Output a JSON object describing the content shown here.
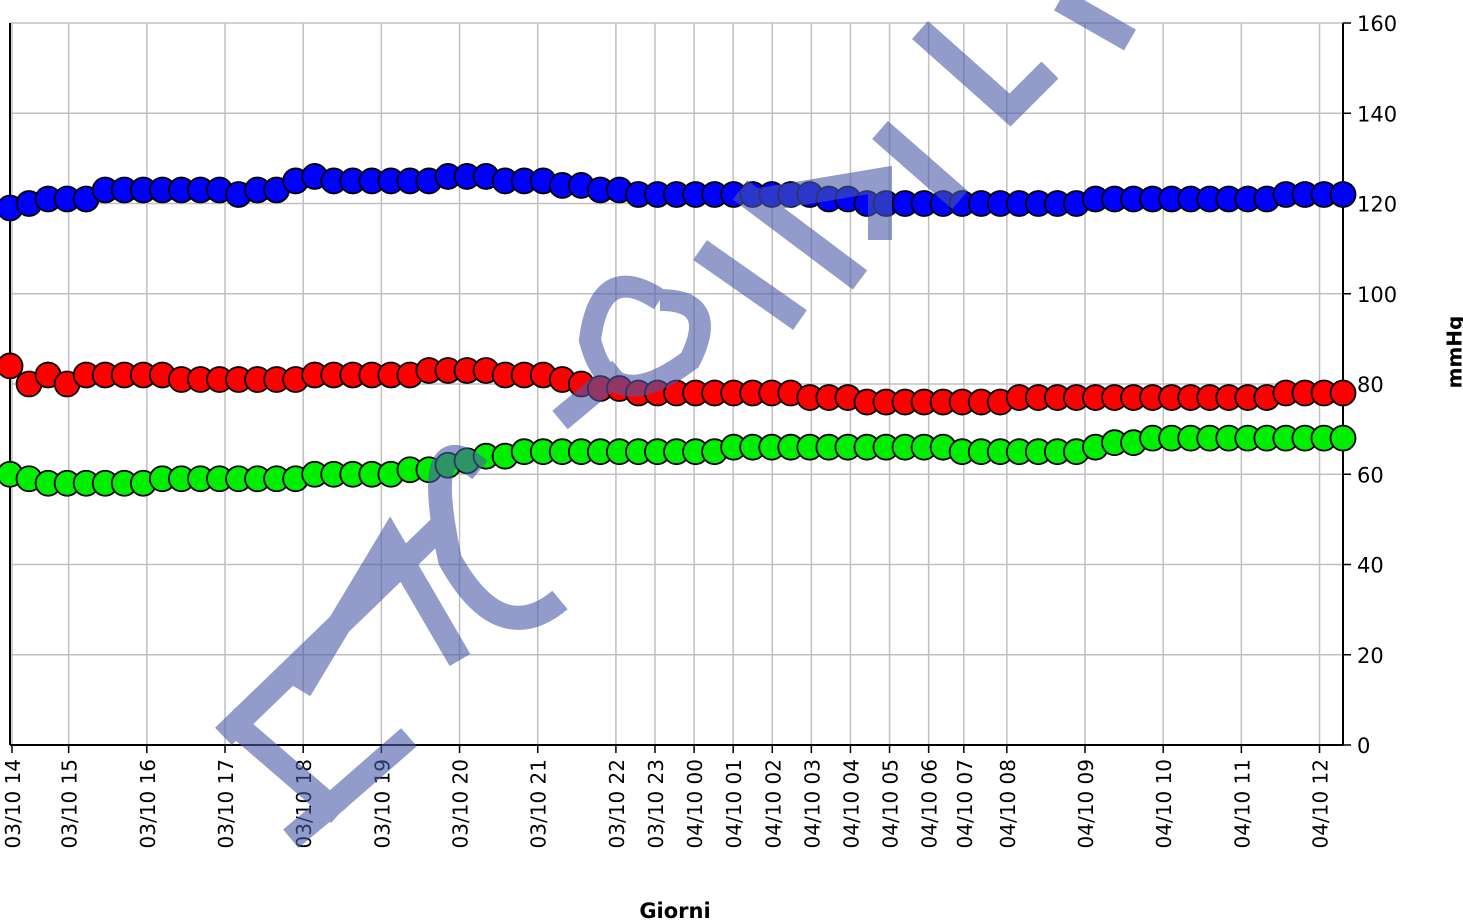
{
  "chart_data": {
    "type": "scatter",
    "xlabel": "Giorni",
    "ylabel": "mmHg",
    "ylim": [
      0,
      160
    ],
    "yticks": [
      0,
      20,
      40,
      60,
      80,
      100,
      120,
      140,
      160
    ],
    "xticks": [
      {
        "label": "03/10 14",
        "x": 0.05
      },
      {
        "label": "03/10 15",
        "x": 1.5
      },
      {
        "label": "03/10 16",
        "x": 3.5
      },
      {
        "label": "03/10 17",
        "x": 5.5
      },
      {
        "label": "03/10 18",
        "x": 7.5
      },
      {
        "label": "03/10 19",
        "x": 9.5
      },
      {
        "label": "03/10 20",
        "x": 11.5
      },
      {
        "label": "03/10 21",
        "x": 13.5
      },
      {
        "label": "03/10 22",
        "x": 15.5
      },
      {
        "label": "03/10 23",
        "x": 16.5
      },
      {
        "label": "04/10 00",
        "x": 17.5
      },
      {
        "label": "04/10 01",
        "x": 18.5
      },
      {
        "label": "04/10 02",
        "x": 19.5
      },
      {
        "label": "04/10 03",
        "x": 20.5
      },
      {
        "label": "04/10 04",
        "x": 21.5
      },
      {
        "label": "04/10 05",
        "x": 22.5
      },
      {
        "label": "04/10 06",
        "x": 23.5
      },
      {
        "label": "04/10 07",
        "x": 24.4
      },
      {
        "label": "04/10 08",
        "x": 25.5
      },
      {
        "label": "04/10 09",
        "x": 27.5
      },
      {
        "label": "04/10 10",
        "x": 29.5
      },
      {
        "label": "04/10 11",
        "x": 31.5
      },
      {
        "label": "04/10 12",
        "x": 33.5
      }
    ],
    "series": [
      {
        "color": "#0000ff",
        "values": [
          119,
          120,
          121,
          121,
          121,
          123,
          123,
          123,
          123,
          123,
          123,
          123,
          122,
          123,
          123,
          125,
          126,
          125,
          125,
          125,
          125,
          125,
          125,
          126,
          126,
          126,
          125,
          125,
          125,
          124,
          124,
          123,
          123,
          122,
          122,
          122,
          122,
          122,
          122,
          122,
          122,
          122,
          122,
          121,
          121,
          120,
          120,
          120,
          120,
          120,
          120,
          120,
          120,
          120,
          120,
          120,
          120,
          121,
          121,
          121,
          121,
          121,
          121,
          121,
          121,
          121,
          121,
          122,
          122,
          122,
          122
        ]
      },
      {
        "color": "#ff0000",
        "values": [
          84,
          80,
          82,
          80,
          82,
          82,
          82,
          82,
          82,
          81,
          81,
          81,
          81,
          81,
          81,
          81,
          82,
          82,
          82,
          82,
          82,
          82,
          83,
          83,
          83,
          83,
          82,
          82,
          82,
          81,
          80,
          79,
          79,
          78,
          78,
          78,
          78,
          78,
          78,
          78,
          78,
          78,
          77,
          77,
          77,
          76,
          76,
          76,
          76,
          76,
          76,
          76,
          76,
          77,
          77,
          77,
          77,
          77,
          77,
          77,
          77,
          77,
          77,
          77,
          77,
          77,
          77,
          78,
          78,
          78,
          78
        ]
      },
      {
        "color": "#00ee00",
        "values": [
          60,
          59,
          58,
          58,
          58,
          58,
          58,
          58,
          59,
          59,
          59,
          59,
          59,
          59,
          59,
          59,
          60,
          60,
          60,
          60,
          60,
          61,
          61,
          62,
          63,
          64,
          64,
          65,
          65,
          65,
          65,
          65,
          65,
          65,
          65,
          65,
          65,
          65,
          66,
          66,
          66,
          66,
          66,
          66,
          66,
          66,
          66,
          66,
          66,
          66,
          65,
          65,
          65,
          65,
          65,
          65,
          65,
          66,
          67,
          67,
          68,
          68,
          68,
          68,
          68,
          68,
          68,
          68,
          68,
          68,
          68
        ]
      }
    ],
    "grid": true
  },
  "watermark": "FAC-SIMILE"
}
